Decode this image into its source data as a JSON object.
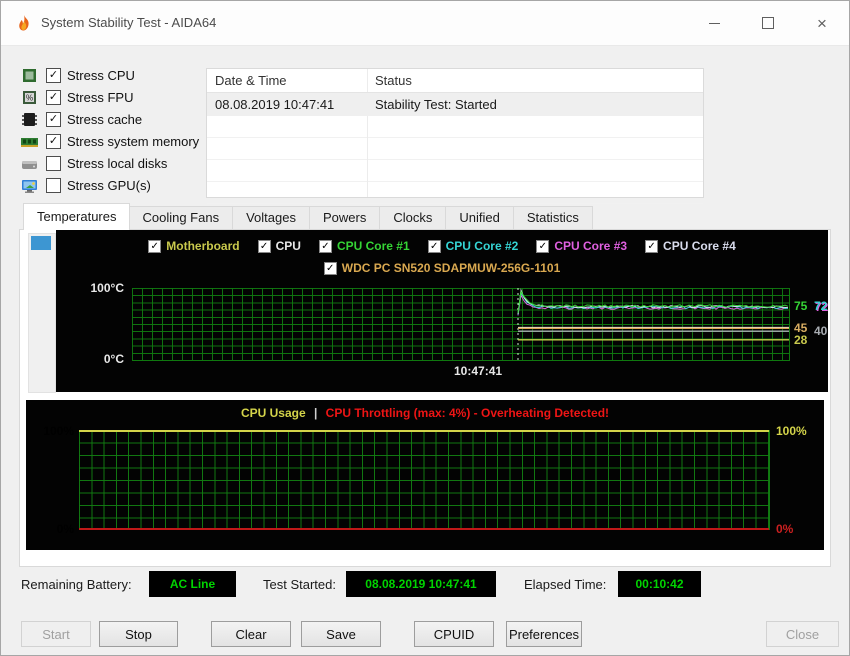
{
  "window": {
    "title": "System Stability Test - AIDA64"
  },
  "stress_options": [
    {
      "label": "Stress CPU",
      "checked": true,
      "icon": "cpu-icon"
    },
    {
      "label": "Stress FPU",
      "checked": true,
      "icon": "fpu-icon"
    },
    {
      "label": "Stress cache",
      "checked": true,
      "icon": "cache-icon"
    },
    {
      "label": "Stress system memory",
      "checked": true,
      "icon": "memory-icon"
    },
    {
      "label": "Stress local disks",
      "checked": false,
      "icon": "disk-icon"
    },
    {
      "label": "Stress GPU(s)",
      "checked": false,
      "icon": "gpu-icon"
    }
  ],
  "log_table": {
    "columns": [
      "Date & Time",
      "Status"
    ],
    "rows": [
      {
        "datetime": "08.08.2019 10:47:41",
        "status": "Stability Test: Started"
      }
    ],
    "empty_rows": 4
  },
  "tabs": [
    "Temperatures",
    "Cooling Fans",
    "Voltages",
    "Powers",
    "Clocks",
    "Unified",
    "Statistics"
  ],
  "active_tab": "Temperatures",
  "chart_data": [
    {
      "type": "line",
      "title": "Temperatures",
      "y_axis": {
        "top_label": "100°C",
        "bottom_label": "0°C",
        "min": 0,
        "max": 100,
        "unit": "°C"
      },
      "x_label": "10:47:41",
      "test_start_fraction": 0.588,
      "grid": true,
      "legend_row1": [
        {
          "name": "Motherboard",
          "color": "#c9c94d",
          "checked": true
        },
        {
          "name": "CPU",
          "color": "#e8e8e8",
          "checked": true
        },
        {
          "name": "CPU Core #1",
          "color": "#35d435",
          "checked": true
        },
        {
          "name": "CPU Core #2",
          "color": "#35d4d4",
          "checked": true
        },
        {
          "name": "CPU Core #3",
          "color": "#e060e0",
          "checked": true
        },
        {
          "name": "CPU Core #4",
          "color": "#d9dced",
          "checked": true
        }
      ],
      "legend_row2": [
        {
          "name": "WDC PC SN520 SDAPMUW-256G-1101",
          "color": "#d9a850",
          "checked": true
        }
      ],
      "series": [
        {
          "name": "CPU Core #3",
          "color": "#e060e0",
          "value": 72,
          "style": "noisy",
          "peak": 90
        },
        {
          "name": "CPU Core #2",
          "color": "#35d4d4",
          "value": 73,
          "style": "noisy",
          "peak": 93
        },
        {
          "name": "CPU Core #4",
          "color": "#d9dced",
          "value": 74,
          "style": "noisy",
          "peak": 97
        },
        {
          "name": "CPU Core #1",
          "color": "#35d435",
          "value": 75,
          "style": "noisy",
          "peak": 95
        },
        {
          "name": "CPU",
          "color": "#e8e8e8",
          "value": 45,
          "style": "flat"
        },
        {
          "name": "WDC PC SN520 SDAPMUW-256G-1101",
          "color": "#d9a850",
          "value": 44,
          "style": "flat"
        },
        {
          "name": "(gray line)",
          "color": "#a9adb3",
          "value": 40,
          "style": "flat"
        },
        {
          "name": "Motherboard",
          "color": "#c9c94d",
          "value": 28,
          "style": "flat"
        }
      ],
      "right_labels": [
        {
          "text": "75",
          "color": "#35d435",
          "value": 75,
          "dx": 0,
          "shadow": ""
        },
        {
          "text": "72",
          "color": "#35d4d4",
          "value": 75,
          "dx": 20,
          "shadow": "#e060e0"
        },
        {
          "text": "45",
          "color": "#d8ad62",
          "value": 45,
          "dx": 0,
          "shadow": ""
        },
        {
          "text": "40",
          "color": "#a9adb3",
          "value": 40,
          "dx": 20,
          "shadow": ""
        },
        {
          "text": "28",
          "color": "#c9c94d",
          "value": 28,
          "dx": 0,
          "shadow": ""
        }
      ]
    },
    {
      "type": "line",
      "title_parts": {
        "main": "CPU Usage",
        "separator": "|",
        "alert": "CPU Throttling (max: 4%) - Overheating Detected!"
      },
      "title_colors": {
        "main": "#d4d44a",
        "alert": "#ee1515"
      },
      "y_axis": {
        "min": 0,
        "max": 100,
        "unit": "%"
      },
      "left_labels": [
        {
          "text": "100%",
          "color": "#e8e8e8"
        },
        {
          "text": "0%",
          "color": "#e8e8e8"
        }
      ],
      "right_labels": [
        {
          "text": "100%",
          "color": "#d4d44a"
        },
        {
          "text": "0%",
          "color": "#cc2020"
        }
      ],
      "series": [
        {
          "name": "CPU Usage",
          "color": "#d4d44a",
          "value": 100
        },
        {
          "name": "CPU Throttling",
          "color": "#c01818",
          "value": 0,
          "max_noted": 4
        }
      ],
      "grid": true
    }
  ],
  "status_bar": {
    "battery_label": "Remaining Battery:",
    "battery_value": "AC Line",
    "started_label": "Test Started:",
    "started_value": "08.08.2019 10:47:41",
    "elapsed_label": "Elapsed Time:",
    "elapsed_value": "00:10:42",
    "value_color": "#00d400"
  },
  "action_buttons": [
    {
      "label": "Start",
      "enabled": false
    },
    {
      "label": "Stop",
      "enabled": true
    },
    {
      "label": "Clear",
      "enabled": true
    },
    {
      "label": "Save",
      "enabled": true
    },
    {
      "label": "CPUID",
      "enabled": true
    },
    {
      "label": "Preferences",
      "enabled": true
    },
    {
      "label": "Close",
      "enabled": false
    }
  ]
}
